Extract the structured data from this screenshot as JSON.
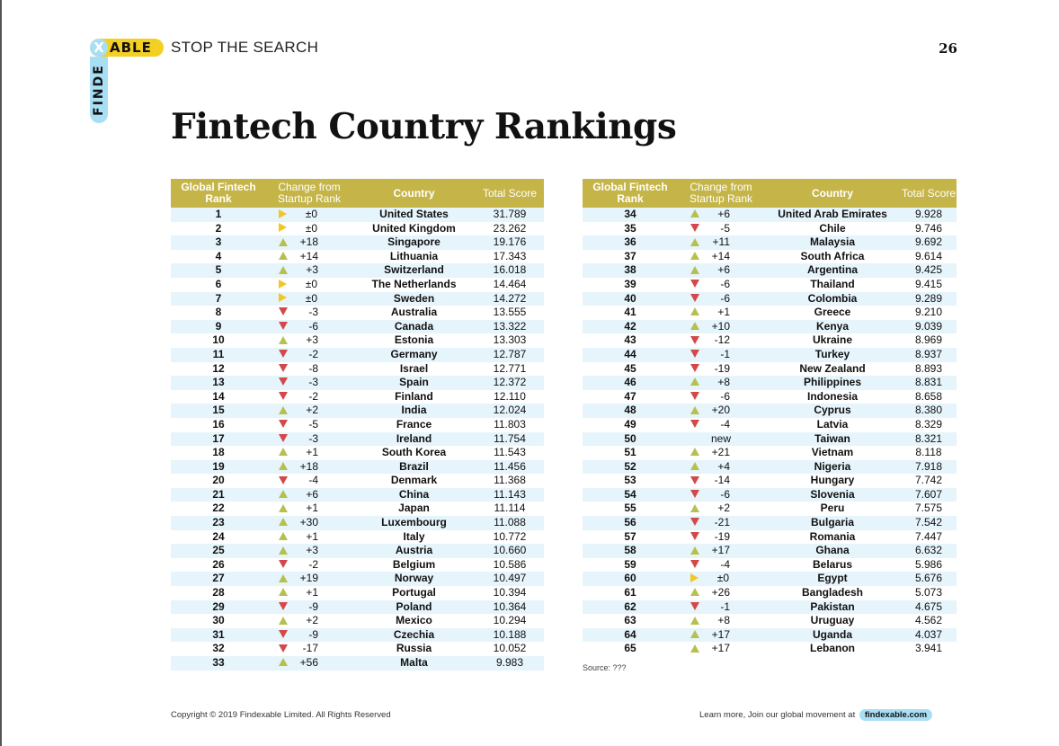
{
  "colors": {
    "header_gold": "#c5b549",
    "row_stripe": "#e6f4fb",
    "logo_yellow": "#f3d021",
    "logo_blue": "#a9dff4",
    "up_arrow": "#b5c04f",
    "down_arrow": "#d2484b",
    "same_arrow": "#f3c623"
  },
  "logo": {
    "letter_x": "X",
    "able": "ABLE",
    "side": "FINDE"
  },
  "header": {
    "tagline": "STOP THE SEARCH",
    "page_number": "26"
  },
  "title": "Fintech Country Rankings",
  "table_headers": {
    "rank": "Global Fintech Rank",
    "change": "Change from Startup Rank",
    "country": "Country",
    "score": "Total Score"
  },
  "left_table": [
    {
      "rank": "1",
      "dir": "same",
      "change": "±0",
      "country": "United States",
      "score": "31.789"
    },
    {
      "rank": "2",
      "dir": "same",
      "change": "±0",
      "country": "United Kingdom",
      "score": "23.262"
    },
    {
      "rank": "3",
      "dir": "up",
      "change": "+18",
      "country": "Singapore",
      "score": "19.176"
    },
    {
      "rank": "4",
      "dir": "up",
      "change": "+14",
      "country": "Lithuania",
      "score": "17.343"
    },
    {
      "rank": "5",
      "dir": "up",
      "change": "+3",
      "country": "Switzerland",
      "score": "16.018"
    },
    {
      "rank": "6",
      "dir": "same",
      "change": "±0",
      "country": "The Netherlands",
      "score": "14.464"
    },
    {
      "rank": "7",
      "dir": "same",
      "change": "±0",
      "country": "Sweden",
      "score": "14.272"
    },
    {
      "rank": "8",
      "dir": "down",
      "change": "-3",
      "country": "Australia",
      "score": "13.555"
    },
    {
      "rank": "9",
      "dir": "down",
      "change": "-6",
      "country": "Canada",
      "score": "13.322"
    },
    {
      "rank": "10",
      "dir": "up",
      "change": "+3",
      "country": "Estonia",
      "score": "13.303"
    },
    {
      "rank": "11",
      "dir": "down",
      "change": "-2",
      "country": "Germany",
      "score": "12.787"
    },
    {
      "rank": "12",
      "dir": "down",
      "change": "-8",
      "country": "Israel",
      "score": "12.771"
    },
    {
      "rank": "13",
      "dir": "down",
      "change": "-3",
      "country": "Spain",
      "score": "12.372"
    },
    {
      "rank": "14",
      "dir": "down",
      "change": "-2",
      "country": "Finland",
      "score": "12.110"
    },
    {
      "rank": "15",
      "dir": "up",
      "change": "+2",
      "country": "India",
      "score": "12.024"
    },
    {
      "rank": "16",
      "dir": "down",
      "change": "-5",
      "country": "France",
      "score": "11.803"
    },
    {
      "rank": "17",
      "dir": "down",
      "change": "-3",
      "country": "Ireland",
      "score": "11.754"
    },
    {
      "rank": "18",
      "dir": "up",
      "change": "+1",
      "country": "South Korea",
      "score": "11.543"
    },
    {
      "rank": "19",
      "dir": "up",
      "change": "+18",
      "country": "Brazil",
      "score": "11.456"
    },
    {
      "rank": "20",
      "dir": "down",
      "change": "-4",
      "country": "Denmark",
      "score": "11.368"
    },
    {
      "rank": "21",
      "dir": "up",
      "change": "+6",
      "country": "China",
      "score": "11.143"
    },
    {
      "rank": "22",
      "dir": "up",
      "change": "+1",
      "country": "Japan",
      "score": "11.114"
    },
    {
      "rank": "23",
      "dir": "up",
      "change": "+30",
      "country": "Luxembourg",
      "score": "11.088"
    },
    {
      "rank": "24",
      "dir": "up",
      "change": "+1",
      "country": "Italy",
      "score": "10.772"
    },
    {
      "rank": "25",
      "dir": "up",
      "change": "+3",
      "country": "Austria",
      "score": "10.660"
    },
    {
      "rank": "26",
      "dir": "down",
      "change": "-2",
      "country": "Belgium",
      "score": "10.586"
    },
    {
      "rank": "27",
      "dir": "up",
      "change": "+19",
      "country": "Norway",
      "score": "10.497"
    },
    {
      "rank": "28",
      "dir": "up",
      "change": "+1",
      "country": "Portugal",
      "score": "10.394"
    },
    {
      "rank": "29",
      "dir": "down",
      "change": "-9",
      "country": "Poland",
      "score": "10.364"
    },
    {
      "rank": "30",
      "dir": "up",
      "change": "+2",
      "country": "Mexico",
      "score": "10.294"
    },
    {
      "rank": "31",
      "dir": "down",
      "change": "-9",
      "country": "Czechia",
      "score": "10.188"
    },
    {
      "rank": "32",
      "dir": "down",
      "change": "-17",
      "country": "Russia",
      "score": "10.052"
    },
    {
      "rank": "33",
      "dir": "up",
      "change": "+56",
      "country": "Malta",
      "score": "9.983"
    }
  ],
  "right_table": [
    {
      "rank": "34",
      "dir": "up",
      "change": "+6",
      "country": "United Arab Emirates",
      "score": "9.928"
    },
    {
      "rank": "35",
      "dir": "down",
      "change": "-5",
      "country": "Chile",
      "score": "9.746"
    },
    {
      "rank": "36",
      "dir": "up",
      "change": "+11",
      "country": "Malaysia",
      "score": "9.692"
    },
    {
      "rank": "37",
      "dir": "up",
      "change": "+14",
      "country": "South Africa",
      "score": "9.614"
    },
    {
      "rank": "38",
      "dir": "up",
      "change": "+6",
      "country": "Argentina",
      "score": "9.425"
    },
    {
      "rank": "39",
      "dir": "down",
      "change": "-6",
      "country": "Thailand",
      "score": "9.415"
    },
    {
      "rank": "40",
      "dir": "down",
      "change": "-6",
      "country": "Colombia",
      "score": "9.289"
    },
    {
      "rank": "41",
      "dir": "up",
      "change": "+1",
      "country": "Greece",
      "score": "9.210"
    },
    {
      "rank": "42",
      "dir": "up",
      "change": "+10",
      "country": "Kenya",
      "score": "9.039"
    },
    {
      "rank": "43",
      "dir": "down",
      "change": "-12",
      "country": "Ukraine",
      "score": "8.969"
    },
    {
      "rank": "44",
      "dir": "down",
      "change": "-1",
      "country": "Turkey",
      "score": "8.937"
    },
    {
      "rank": "45",
      "dir": "down",
      "change": "-19",
      "country": "New Zealand",
      "score": "8.893"
    },
    {
      "rank": "46",
      "dir": "up",
      "change": "+8",
      "country": "Philippines",
      "score": "8.831"
    },
    {
      "rank": "47",
      "dir": "down",
      "change": "-6",
      "country": "Indonesia",
      "score": "8.658"
    },
    {
      "rank": "48",
      "dir": "up",
      "change": "+20",
      "country": "Cyprus",
      "score": "8.380"
    },
    {
      "rank": "49",
      "dir": "down",
      "change": "-4",
      "country": "Latvia",
      "score": "8.329"
    },
    {
      "rank": "50",
      "dir": "none",
      "change": "new",
      "country": "Taiwan",
      "score": "8.321"
    },
    {
      "rank": "51",
      "dir": "up",
      "change": "+21",
      "country": "Vietnam",
      "score": "8.118"
    },
    {
      "rank": "52",
      "dir": "up",
      "change": "+4",
      "country": "Nigeria",
      "score": "7.918"
    },
    {
      "rank": "53",
      "dir": "down",
      "change": "-14",
      "country": "Hungary",
      "score": "7.742"
    },
    {
      "rank": "54",
      "dir": "down",
      "change": "-6",
      "country": "Slovenia",
      "score": "7.607"
    },
    {
      "rank": "55",
      "dir": "up",
      "change": "+2",
      "country": "Peru",
      "score": "7.575"
    },
    {
      "rank": "56",
      "dir": "down",
      "change": "-21",
      "country": "Bulgaria",
      "score": "7.542"
    },
    {
      "rank": "57",
      "dir": "down",
      "change": "-19",
      "country": "Romania",
      "score": "7.447"
    },
    {
      "rank": "58",
      "dir": "up",
      "change": "+17",
      "country": "Ghana",
      "score": "6.632"
    },
    {
      "rank": "59",
      "dir": "down",
      "change": "-4",
      "country": "Belarus",
      "score": "5.986"
    },
    {
      "rank": "60",
      "dir": "same",
      "change": "±0",
      "country": "Egypt",
      "score": "5.676"
    },
    {
      "rank": "61",
      "dir": "up",
      "change": "+26",
      "country": "Bangladesh",
      "score": "5.073"
    },
    {
      "rank": "62",
      "dir": "down",
      "change": "-1",
      "country": "Pakistan",
      "score": "4.675"
    },
    {
      "rank": "63",
      "dir": "up",
      "change": "+8",
      "country": "Uruguay",
      "score": "4.562"
    },
    {
      "rank": "64",
      "dir": "up",
      "change": "+17",
      "country": "Uganda",
      "score": "4.037"
    },
    {
      "rank": "65",
      "dir": "up",
      "change": "+17",
      "country": "Lebanon",
      "score": "3.941"
    }
  ],
  "source": "Source: ???",
  "footer": {
    "copyright": "Copyright © 2019 Findexable Limited. All Rights Reserved",
    "learn_more": "Learn more, Join our global movement at",
    "link": "findexable.com"
  }
}
